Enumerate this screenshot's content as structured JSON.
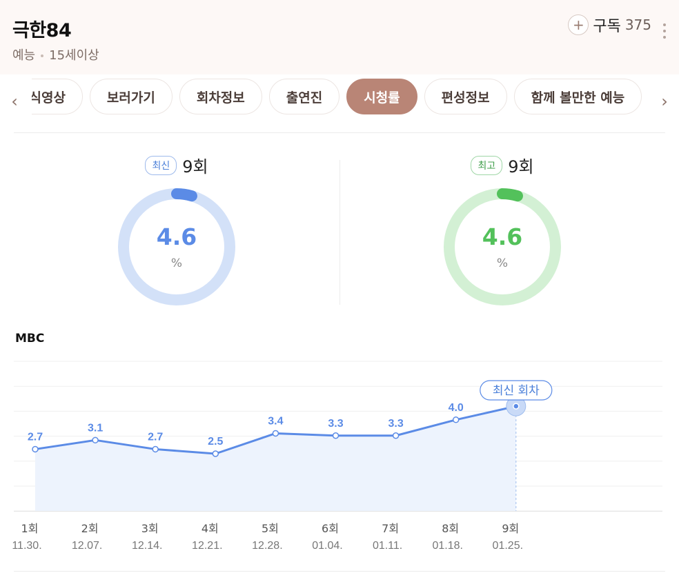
{
  "header": {
    "title": "극한84",
    "genre": "예능",
    "rating": "15세이상",
    "subscribe_label": "구독",
    "subscribe_count": "375"
  },
  "tabs": [
    {
      "label": "공식영상",
      "active": false
    },
    {
      "label": "보러가기",
      "active": false
    },
    {
      "label": "회차정보",
      "active": false
    },
    {
      "label": "출연진",
      "active": false
    },
    {
      "label": "시청률",
      "active": true
    },
    {
      "label": "편성정보",
      "active": false
    },
    {
      "label": "함께 볼만한 예능",
      "active": false
    }
  ],
  "stats": {
    "latest": {
      "badge": "최신",
      "episode": "9회",
      "value": "4.6",
      "unit": "%",
      "fraction": 0.046,
      "color": "#5b8be6",
      "track": "#d3e1f8"
    },
    "best": {
      "badge": "최고",
      "episode": "9회",
      "value": "4.6",
      "unit": "%",
      "fraction": 0.046,
      "color": "#53c15b",
      "track": "#d3f0d4"
    }
  },
  "chart_data": {
    "type": "line",
    "title": "MBC",
    "categories": [
      "1회",
      "2회",
      "3회",
      "4회",
      "5회",
      "6회",
      "7회",
      "8회",
      "9회"
    ],
    "dates": [
      "11.30.",
      "12.07.",
      "12.14.",
      "12.21.",
      "12.28.",
      "01.04.",
      "01.11.",
      "01.18.",
      "01.25."
    ],
    "values": [
      2.7,
      3.1,
      2.7,
      2.5,
      3.4,
      3.3,
      3.3,
      4.0,
      4.6
    ],
    "highlight_label": "최신 회차",
    "grid": true,
    "line_color": "#5b8be6",
    "area_color": "#edf3fd"
  }
}
